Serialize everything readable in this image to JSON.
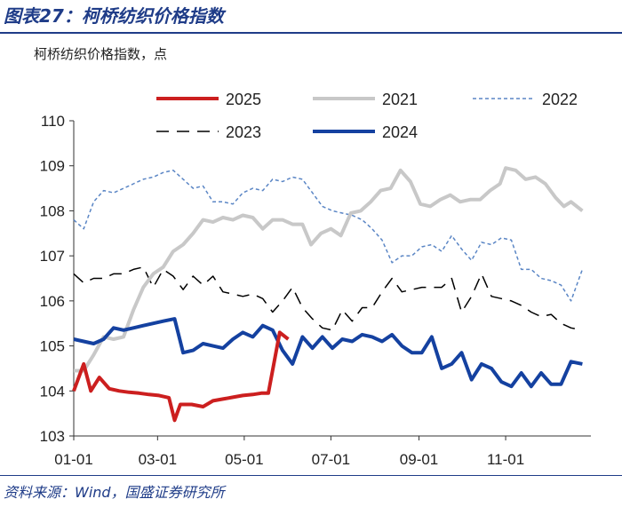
{
  "figure": {
    "title": "图表27：柯桥纺织价格指数",
    "unit_label": "柯桥纺织价格指数，点",
    "source": "资料来源：Wind，国盛证券研究所"
  },
  "chart_data": {
    "type": "line",
    "x_ticks": [
      "01-01",
      "03-01",
      "05-01",
      "07-01",
      "09-01",
      "11-01"
    ],
    "x_tick_days": [
      1,
      60,
      121,
      182,
      244,
      305
    ],
    "ylim": [
      103,
      110
    ],
    "y_ticks": [
      103,
      104,
      105,
      106,
      107,
      108,
      109,
      110
    ],
    "legend_placement": "top",
    "series": [
      {
        "name": "2025",
        "color": "#cc1f1f",
        "dash": "solid",
        "width": 4,
        "points": [
          [
            1,
            104.0
          ],
          [
            8,
            104.6
          ],
          [
            13,
            104.0
          ],
          [
            19,
            104.3
          ],
          [
            26,
            104.05
          ],
          [
            33,
            104.0
          ],
          [
            40,
            103.97
          ],
          [
            47,
            103.95
          ],
          [
            54,
            103.92
          ],
          [
            61,
            103.9
          ],
          [
            68,
            103.85
          ],
          [
            72,
            103.35
          ],
          [
            76,
            103.7
          ],
          [
            84,
            103.7
          ],
          [
            92,
            103.65
          ],
          [
            99,
            103.78
          ],
          [
            106,
            103.82
          ],
          [
            113,
            103.86
          ],
          [
            120,
            103.9
          ],
          [
            127,
            103.92
          ],
          [
            133,
            103.95
          ],
          [
            138,
            103.95
          ],
          [
            146,
            105.3
          ],
          [
            152,
            105.15
          ]
        ]
      },
      {
        "name": "2021",
        "color": "#c8c8c8",
        "dash": "solid",
        "width": 4,
        "points": [
          [
            1,
            104.45
          ],
          [
            8,
            104.45
          ],
          [
            15,
            104.8
          ],
          [
            22,
            105.2
          ],
          [
            29,
            105.15
          ],
          [
            36,
            105.2
          ],
          [
            43,
            105.8
          ],
          [
            50,
            106.3
          ],
          [
            57,
            106.6
          ],
          [
            64,
            106.75
          ],
          [
            71,
            107.1
          ],
          [
            78,
            107.25
          ],
          [
            85,
            107.5
          ],
          [
            92,
            107.8
          ],
          [
            99,
            107.75
          ],
          [
            106,
            107.85
          ],
          [
            113,
            107.8
          ],
          [
            120,
            107.9
          ],
          [
            127,
            107.85
          ],
          [
            134,
            107.6
          ],
          [
            141,
            107.8
          ],
          [
            148,
            107.8
          ],
          [
            155,
            107.7
          ],
          [
            162,
            107.7
          ],
          [
            168,
            107.25
          ],
          [
            175,
            107.5
          ],
          [
            182,
            107.6
          ],
          [
            189,
            107.45
          ],
          [
            196,
            107.95
          ],
          [
            203,
            108.0
          ],
          [
            210,
            108.2
          ],
          [
            217,
            108.45
          ],
          [
            224,
            108.5
          ],
          [
            231,
            108.9
          ],
          [
            238,
            108.65
          ],
          [
            245,
            108.15
          ],
          [
            252,
            108.1
          ],
          [
            259,
            108.25
          ],
          [
            266,
            108.35
          ],
          [
            273,
            108.2
          ],
          [
            280,
            108.25
          ],
          [
            287,
            108.25
          ],
          [
            294,
            108.45
          ],
          [
            301,
            108.6
          ],
          [
            305,
            108.95
          ],
          [
            312,
            108.9
          ],
          [
            319,
            108.7
          ],
          [
            326,
            108.75
          ],
          [
            333,
            108.6
          ],
          [
            340,
            108.3
          ],
          [
            346,
            108.1
          ],
          [
            351,
            108.2
          ],
          [
            359,
            108.0
          ]
        ]
      },
      {
        "name": "2022",
        "color": "#5b86c5",
        "dash": "short-dash",
        "width": 1.5,
        "points": [
          [
            1,
            107.8
          ],
          [
            8,
            107.6
          ],
          [
            15,
            108.2
          ],
          [
            22,
            108.45
          ],
          [
            29,
            108.4
          ],
          [
            36,
            108.5
          ],
          [
            43,
            108.6
          ],
          [
            50,
            108.7
          ],
          [
            57,
            108.75
          ],
          [
            64,
            108.85
          ],
          [
            71,
            108.9
          ],
          [
            78,
            108.7
          ],
          [
            85,
            108.5
          ],
          [
            92,
            108.55
          ],
          [
            99,
            108.2
          ],
          [
            106,
            108.2
          ],
          [
            113,
            108.15
          ],
          [
            120,
            108.4
          ],
          [
            127,
            108.5
          ],
          [
            134,
            108.45
          ],
          [
            141,
            108.7
          ],
          [
            148,
            108.65
          ],
          [
            155,
            108.75
          ],
          [
            162,
            108.7
          ],
          [
            169,
            108.4
          ],
          [
            176,
            108.1
          ],
          [
            183,
            108.0
          ],
          [
            190,
            107.95
          ],
          [
            197,
            107.9
          ],
          [
            204,
            107.8
          ],
          [
            211,
            107.6
          ],
          [
            218,
            107.35
          ],
          [
            225,
            106.85
          ],
          [
            232,
            107.0
          ],
          [
            239,
            107.0
          ],
          [
            246,
            107.2
          ],
          [
            253,
            107.25
          ],
          [
            260,
            107.1
          ],
          [
            267,
            107.45
          ],
          [
            274,
            107.15
          ],
          [
            281,
            106.9
          ],
          [
            288,
            107.3
          ],
          [
            295,
            107.25
          ],
          [
            302,
            107.4
          ],
          [
            309,
            107.35
          ],
          [
            316,
            106.7
          ],
          [
            323,
            106.7
          ],
          [
            330,
            106.5
          ],
          [
            337,
            106.45
          ],
          [
            344,
            106.35
          ],
          [
            351,
            106.0
          ],
          [
            359,
            106.7
          ]
        ]
      },
      {
        "name": "2023",
        "color": "#000000",
        "dash": "long-dash",
        "width": 1.5,
        "points": [
          [
            1,
            106.6
          ],
          [
            8,
            106.4
          ],
          [
            15,
            106.5
          ],
          [
            22,
            106.5
          ],
          [
            29,
            106.6
          ],
          [
            36,
            106.6
          ],
          [
            43,
            106.7
          ],
          [
            50,
            106.75
          ],
          [
            57,
            106.3
          ],
          [
            64,
            106.7
          ],
          [
            71,
            106.55
          ],
          [
            78,
            106.25
          ],
          [
            85,
            106.55
          ],
          [
            92,
            106.35
          ],
          [
            99,
            106.55
          ],
          [
            106,
            106.2
          ],
          [
            113,
            106.15
          ],
          [
            120,
            106.1
          ],
          [
            127,
            106.15
          ],
          [
            134,
            106.05
          ],
          [
            141,
            105.75
          ],
          [
            148,
            106.0
          ],
          [
            155,
            106.3
          ],
          [
            162,
            105.85
          ],
          [
            169,
            105.6
          ],
          [
            176,
            105.4
          ],
          [
            183,
            105.35
          ],
          [
            190,
            105.8
          ],
          [
            197,
            105.55
          ],
          [
            204,
            105.85
          ],
          [
            211,
            105.85
          ],
          [
            218,
            106.2
          ],
          [
            225,
            106.5
          ],
          [
            232,
            106.2
          ],
          [
            239,
            106.25
          ],
          [
            246,
            106.3
          ],
          [
            253,
            106.3
          ],
          [
            260,
            106.3
          ],
          [
            267,
            106.5
          ],
          [
            274,
            105.75
          ],
          [
            281,
            106.1
          ],
          [
            288,
            106.6
          ],
          [
            295,
            106.1
          ],
          [
            302,
            106.05
          ],
          [
            309,
            106.0
          ],
          [
            316,
            105.9
          ],
          [
            323,
            105.75
          ],
          [
            330,
            105.65
          ],
          [
            337,
            105.7
          ],
          [
            344,
            105.5
          ],
          [
            351,
            105.4
          ],
          [
            359,
            105.35
          ]
        ]
      },
      {
        "name": "2024",
        "color": "#1441a0",
        "dash": "solid",
        "width": 4,
        "points": [
          [
            1,
            105.15
          ],
          [
            8,
            105.1
          ],
          [
            15,
            105.05
          ],
          [
            22,
            105.15
          ],
          [
            29,
            105.4
          ],
          [
            36,
            105.35
          ],
          [
            43,
            105.4
          ],
          [
            50,
            105.45
          ],
          [
            57,
            105.5
          ],
          [
            64,
            105.55
          ],
          [
            72,
            105.6
          ],
          [
            78,
            104.85
          ],
          [
            85,
            104.9
          ],
          [
            92,
            105.05
          ],
          [
            99,
            105.0
          ],
          [
            106,
            104.95
          ],
          [
            113,
            105.15
          ],
          [
            120,
            105.3
          ],
          [
            127,
            105.2
          ],
          [
            134,
            105.45
          ],
          [
            141,
            105.35
          ],
          [
            148,
            104.9
          ],
          [
            155,
            104.6
          ],
          [
            162,
            105.2
          ],
          [
            169,
            104.95
          ],
          [
            176,
            105.2
          ],
          [
            183,
            104.95
          ],
          [
            190,
            105.15
          ],
          [
            197,
            105.1
          ],
          [
            204,
            105.25
          ],
          [
            211,
            105.2
          ],
          [
            218,
            105.1
          ],
          [
            225,
            105.25
          ],
          [
            232,
            105.0
          ],
          [
            239,
            104.85
          ],
          [
            246,
            104.85
          ],
          [
            253,
            105.2
          ],
          [
            260,
            104.5
          ],
          [
            267,
            104.6
          ],
          [
            274,
            104.85
          ],
          [
            281,
            104.25
          ],
          [
            288,
            104.6
          ],
          [
            295,
            104.5
          ],
          [
            302,
            104.2
          ],
          [
            309,
            104.1
          ],
          [
            316,
            104.4
          ],
          [
            323,
            104.1
          ],
          [
            330,
            104.4
          ],
          [
            337,
            104.15
          ],
          [
            344,
            104.15
          ],
          [
            351,
            104.65
          ],
          [
            359,
            104.6
          ]
        ]
      }
    ]
  }
}
